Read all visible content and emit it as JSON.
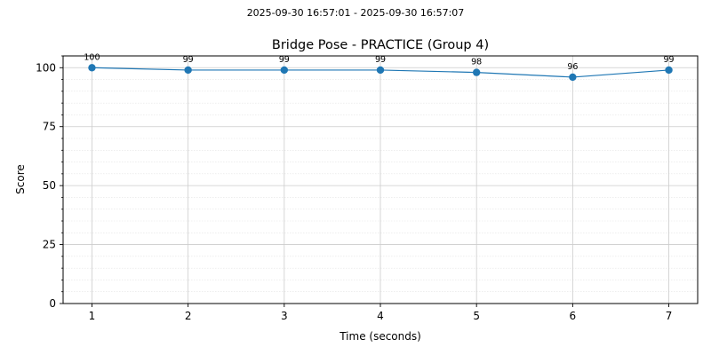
{
  "chart_data": {
    "type": "line",
    "supertitle": "2025-09-30 16:57:01 - 2025-09-30 16:57:07",
    "title": "Bridge Pose - PRACTICE (Group 4)",
    "xlabel": "Time (seconds)",
    "ylabel": "Score",
    "x": [
      1,
      2,
      3,
      4,
      5,
      6,
      7
    ],
    "series": [
      {
        "values": [
          100,
          99,
          99,
          99,
          98,
          96,
          99
        ],
        "color": "#1f77b4"
      }
    ],
    "data_labels": [
      "100",
      "99",
      "99",
      "99",
      "98",
      "96",
      "99"
    ],
    "xticks": [
      1,
      2,
      3,
      4,
      5,
      6,
      7
    ],
    "yticks": [
      0,
      25,
      50,
      75,
      100
    ],
    "xlim": [
      0.7,
      7.3
    ],
    "ylim": [
      0,
      105
    ],
    "grid": true,
    "minor_grid": true
  }
}
